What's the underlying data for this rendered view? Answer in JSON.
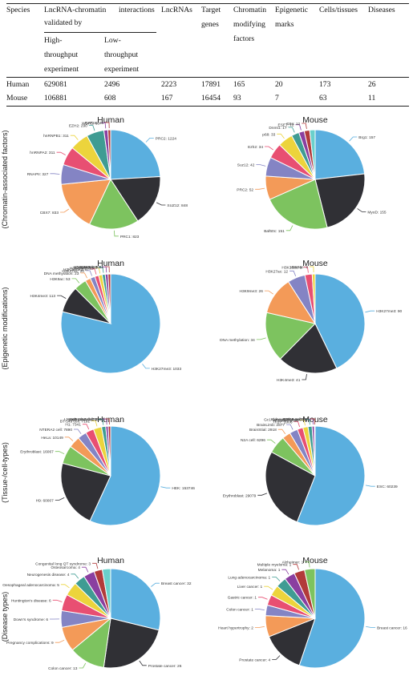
{
  "table": {
    "headers": {
      "species": "Species",
      "interactions_l1": "LncRNA-chromatin",
      "interactions_l1b": "interactions",
      "interactions_l2": "validated by",
      "high_1": "High-",
      "high_2": "throughput",
      "high_3": "experiment",
      "low_1": "Low-",
      "low_2": "throughput",
      "low_3": "experiment",
      "lncrnas": "LncRNAs",
      "targets_1": "Target",
      "targets_2": "genes",
      "cmf_1": "Chromatin",
      "cmf_2": "modifying",
      "cmf_3": "factors",
      "epi_1": "Epigenetic",
      "epi_2": "marks",
      "cells": "Cells/tissues",
      "diseases": "Diseases"
    },
    "rows": [
      {
        "species": "Human",
        "high": "629081",
        "low": "2496",
        "lncrnas": "2223",
        "targets": "17891",
        "cmf": "165",
        "epi": "20",
        "cells": "173",
        "diseases": "26"
      },
      {
        "species": "Mouse",
        "high": "106881",
        "low": "608",
        "lncrnas": "167",
        "targets": "16454",
        "cmf": "93",
        "epi": "7",
        "cells": "63",
        "diseases": "11"
      }
    ]
  },
  "row_labels": [
    "(Chromatin-associated factors)",
    "(Epigenetic modifications)",
    "(Tissue-/cell-types)",
    "(Disease types)"
  ],
  "chart_data": [
    {
      "type": "pie",
      "title": "Human",
      "row": 0,
      "col": 0,
      "slices": [
        {
          "label": "PRC2",
          "value": 1224,
          "color": "#5aafdf"
        },
        {
          "label": "SUZ12",
          "value": 848,
          "color": "#303035"
        },
        {
          "label": "PRC1",
          "value": 823,
          "color": "#7dc35f"
        },
        {
          "label": "CBX7",
          "value": 833,
          "color": "#f39a58"
        },
        {
          "label": "RNAPII",
          "value": 327,
          "color": "#8484c4"
        },
        {
          "label": "hnRNPA2",
          "value": 311,
          "color": "#e84f72"
        },
        {
          "label": "hnRNPB1",
          "value": 311,
          "color": "#ecd43c"
        },
        {
          "label": "EZH2",
          "value": 290,
          "color": "#3f9c93"
        },
        {
          "label": "WDR5",
          "value": 66,
          "color": "#8a3fa0"
        },
        {
          "label": "KAT2A",
          "value": 46,
          "color": "#b23a3a"
        }
      ]
    },
    {
      "type": "pie",
      "title": "Mouse",
      "row": 0,
      "col": 1,
      "slices": [
        {
          "label": "Brg1",
          "value": 157,
          "color": "#5aafdf"
        },
        {
          "label": "MyoD",
          "value": 155,
          "color": "#303035"
        },
        {
          "label": "Baf60c",
          "value": 151,
          "color": "#7dc35f"
        },
        {
          "label": "PRC2",
          "value": 52,
          "color": "#f39a58"
        },
        {
          "label": "Suz12",
          "value": 42,
          "color": "#8484c4"
        },
        {
          "label": "Ezh2",
          "value": 34,
          "color": "#e84f72"
        },
        {
          "label": "p68",
          "value": 33,
          "color": "#ecd43c"
        },
        {
          "label": "Dnmt1",
          "value": 17,
          "color": "#3f9c93"
        },
        {
          "label": "ESET",
          "value": 12,
          "color": "#8a3fa0"
        },
        {
          "label": "G9a",
          "value": 12,
          "color": "#b23a3a"
        },
        {
          "label": "Other",
          "value": 12,
          "color": "#6ad0cc"
        }
      ]
    },
    {
      "type": "pie",
      "title": "Human",
      "row": 1,
      "col": 0,
      "slices": [
        {
          "label": "H3K27me3",
          "value": 1033,
          "color": "#5aafdf"
        },
        {
          "label": "H3K4me3",
          "value": 113,
          "color": "#303035"
        },
        {
          "label": "H3K9ac",
          "value": 53,
          "color": "#7dc35f"
        },
        {
          "label": "DNA methylation",
          "value": 23,
          "color": "#f39a58"
        },
        {
          "label": "H3K27ac",
          "value": 20,
          "color": "#8484c4"
        },
        {
          "label": "H3K36me3",
          "value": 17,
          "color": "#e84f72"
        },
        {
          "label": "H3K4me2",
          "value": 15,
          "color": "#ecd43c"
        },
        {
          "label": "H3K9me2",
          "value": 13,
          "color": "#3f9c93"
        },
        {
          "label": "H2AK119ub",
          "value": 12,
          "color": "#8a3fa0"
        },
        {
          "label": "H3K9me3",
          "value": 11,
          "color": "#b23a3a"
        }
      ]
    },
    {
      "type": "pie",
      "title": "Mouse",
      "row": 1,
      "col": 1,
      "slices": [
        {
          "label": "H3K27me3",
          "value": 90,
          "color": "#5aafdf"
        },
        {
          "label": "H3K4me3",
          "value": 41,
          "color": "#303035"
        },
        {
          "label": "DNA methylation",
          "value": 34,
          "color": "#7dc35f"
        },
        {
          "label": "H3K9me3",
          "value": 26,
          "color": "#f39a58"
        },
        {
          "label": "H3K27ac",
          "value": 12,
          "color": "#8484c4"
        },
        {
          "label": "H3K18ac",
          "value": 5,
          "color": "#e84f72"
        },
        {
          "label": "H3K9ac",
          "value": 2,
          "color": "#ecd43c"
        }
      ]
    },
    {
      "type": "pie",
      "title": "Human",
      "row": 2,
      "col": 0,
      "slices": [
        {
          "label": "HEK",
          "value": 153746,
          "color": "#5aafdf"
        },
        {
          "label": "H9",
          "value": 60007,
          "color": "#303035"
        },
        {
          "label": "Erythroblast",
          "value": 16067,
          "color": "#7dc35f"
        },
        {
          "label": "HeLa",
          "value": 10149,
          "color": "#f39a58"
        },
        {
          "label": "NTERA2 cell",
          "value": 7890,
          "color": "#8484c4"
        },
        {
          "label": "H1",
          "value": 7341,
          "color": "#e84f72"
        },
        {
          "label": "BT-549 cell",
          "value": 7191,
          "color": "#ecd43c"
        },
        {
          "label": "MCF7 cell",
          "value": 3678,
          "color": "#3f9c93"
        },
        {
          "label": "Hela-S3 cell",
          "value": 2197,
          "color": "#8a3fa0"
        },
        {
          "label": "LNCaP-cds2 cell",
          "value": 2132,
          "color": "#b23a3a"
        }
      ]
    },
    {
      "type": "pie",
      "title": "Mouse",
      "row": 2,
      "col": 1,
      "slices": [
        {
          "label": "ESC",
          "value": 60239,
          "color": "#5aafdf"
        },
        {
          "label": "Erythroblast",
          "value": 29079,
          "color": "#303035"
        },
        {
          "label": "N2A cell",
          "value": 6296,
          "color": "#7dc35f"
        },
        {
          "label": "BrainStial",
          "value": 2918,
          "color": "#f39a58"
        },
        {
          "label": "BrainLimb",
          "value": 2877,
          "color": "#8484c4"
        },
        {
          "label": "Th17",
          "value": 2006,
          "color": "#e84f72"
        },
        {
          "label": "Brain",
          "value": 1799,
          "color": "#ecd43c"
        },
        {
          "label": "Gc1-Spg cell line",
          "value": 1407,
          "color": "#3f9c93"
        },
        {
          "label": "KidneyPodocyte",
          "value": 807,
          "color": "#8a3fa0"
        },
        {
          "label": "HPC5 cell",
          "value": 264,
          "color": "#b23a3a"
        }
      ]
    },
    {
      "type": "pie",
      "title": "Human",
      "row": 3,
      "col": 0,
      "slices": [
        {
          "label": "Breast cancer",
          "value": 32,
          "color": "#5aafdf"
        },
        {
          "label": "Prostate cancer",
          "value": 26,
          "color": "#303035"
        },
        {
          "label": "Colon cancer",
          "value": 13,
          "color": "#7dc35f"
        },
        {
          "label": "Pregnancy complications",
          "value": 9,
          "color": "#f39a58"
        },
        {
          "label": "Down's syndrome",
          "value": 6,
          "color": "#8484c4"
        },
        {
          "label": "Huntington's disease",
          "value": 6,
          "color": "#e84f72"
        },
        {
          "label": "Oesophageal adenocarcinoma",
          "value": 5,
          "color": "#ecd43c"
        },
        {
          "label": "Neurogenesis disease",
          "value": 4,
          "color": "#3f9c93"
        },
        {
          "label": "Osteosarcoma",
          "value": 4,
          "color": "#8a3fa0"
        },
        {
          "label": "Congenital long QT syndrome",
          "value": 3,
          "color": "#b23a3a"
        },
        {
          "label": "Other",
          "value": 3,
          "color": "#6ad0cc"
        }
      ]
    },
    {
      "type": "pie",
      "title": "Mouse",
      "row": 3,
      "col": 1,
      "slices": [
        {
          "label": "Breast cancer",
          "value": 16,
          "color": "#5aafdf"
        },
        {
          "label": "Prostate cancer",
          "value": 4,
          "color": "#303035"
        },
        {
          "label": "Heart hypertrophy",
          "value": 2,
          "color": "#f39a58"
        },
        {
          "label": "Colon cancer",
          "value": 1,
          "color": "#8484c4"
        },
        {
          "label": "Gastric cancer",
          "value": 1,
          "color": "#e84f72"
        },
        {
          "label": "Liver cancer",
          "value": 1,
          "color": "#ecd43c"
        },
        {
          "label": "Lung adenocarcinoma",
          "value": 1,
          "color": "#3f9c93"
        },
        {
          "label": "Melanoma",
          "value": 1,
          "color": "#8a3fa0"
        },
        {
          "label": "Multiple myeloma",
          "value": 1,
          "color": "#b23a3a"
        },
        {
          "label": "Alzheimer",
          "value": 1,
          "color": "#7dc35f"
        }
      ]
    }
  ]
}
